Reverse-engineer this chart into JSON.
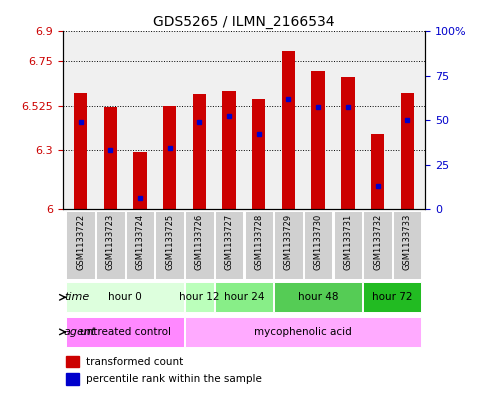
{
  "title": "GDS5265 / ILMN_2166534",
  "samples": [
    "GSM1133722",
    "GSM1133723",
    "GSM1133724",
    "GSM1133725",
    "GSM1133726",
    "GSM1133727",
    "GSM1133728",
    "GSM1133729",
    "GSM1133730",
    "GSM1133731",
    "GSM1133732",
    "GSM1133733"
  ],
  "bar_tops": [
    6.59,
    6.52,
    6.29,
    6.525,
    6.585,
    6.6,
    6.56,
    6.8,
    6.7,
    6.67,
    6.38,
    6.59
  ],
  "percentile_values": [
    6.44,
    6.3,
    6.06,
    6.31,
    6.44,
    6.47,
    6.38,
    6.56,
    6.52,
    6.52,
    6.12,
    6.45
  ],
  "bar_bottom": 6.0,
  "ylim": [
    6.0,
    6.9
  ],
  "yticks_left": [
    6.0,
    6.3,
    6.525,
    6.75,
    6.9
  ],
  "ytick_labels_left": [
    "6",
    "6.3",
    "6.525",
    "6.75",
    "6.9"
  ],
  "yticks_right_pct": [
    0,
    25,
    50,
    75,
    100
  ],
  "yticks_right_labels": [
    "0",
    "25",
    "50",
    "75",
    "100%"
  ],
  "bar_color": "#cc0000",
  "dot_color": "#0000cc",
  "time_groups": [
    {
      "label": "hour 0",
      "samples": [
        0,
        1,
        2,
        3
      ],
      "color": "#ddffdd"
    },
    {
      "label": "hour 12",
      "samples": [
        4
      ],
      "color": "#bbffbb"
    },
    {
      "label": "hour 24",
      "samples": [
        5,
        6
      ],
      "color": "#88ee88"
    },
    {
      "label": "hour 48",
      "samples": [
        7,
        8,
        9
      ],
      "color": "#55cc55"
    },
    {
      "label": "hour 72",
      "samples": [
        10,
        11
      ],
      "color": "#22bb22"
    }
  ],
  "agent_groups": [
    {
      "label": "untreated control",
      "samples": [
        0,
        1,
        2,
        3
      ],
      "color": "#ff88ff"
    },
    {
      "label": "mycophenolic acid",
      "samples": [
        4,
        5,
        6,
        7,
        8,
        9,
        10,
        11
      ],
      "color": "#ffaaff"
    }
  ],
  "legend_red": "transformed count",
  "legend_blue": "percentile rank within the sample",
  "label_time": "time",
  "label_agent": "agent"
}
